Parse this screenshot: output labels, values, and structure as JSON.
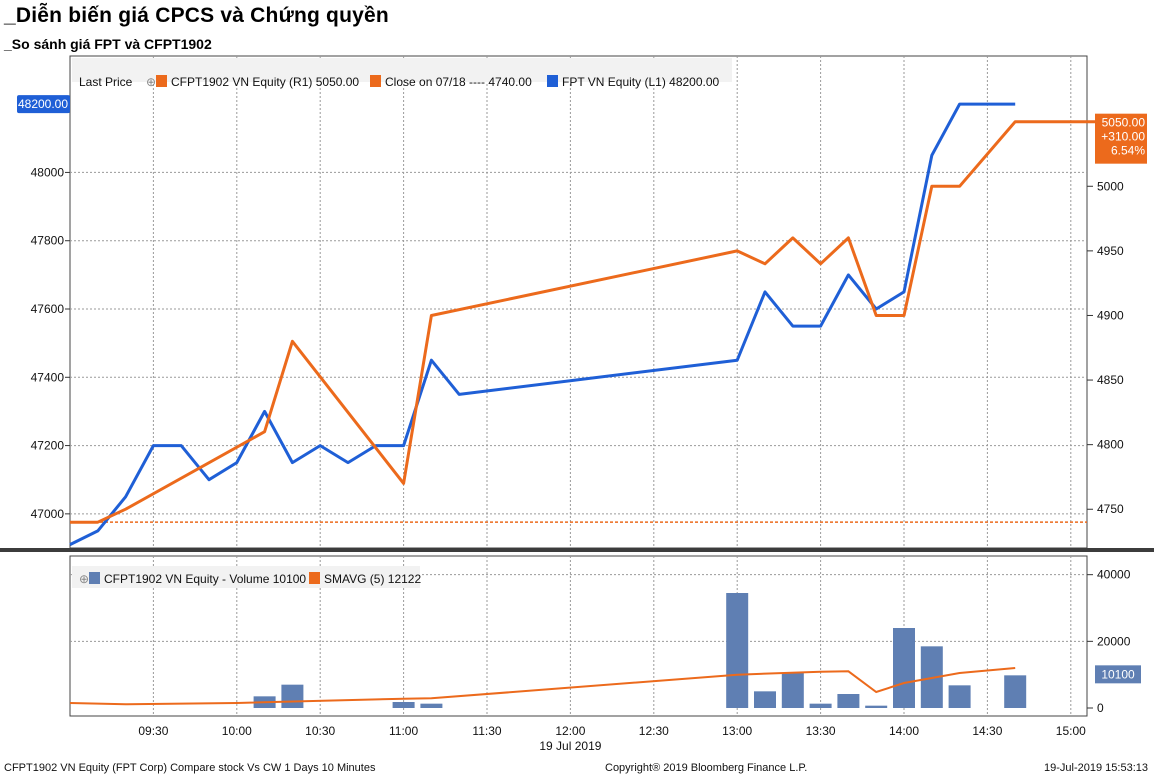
{
  "header": {
    "title": "_Diễn biến giá CPCS và Chứng quyền",
    "subtitle": "_So sánh giá FPT và CFPT1902"
  },
  "footer": {
    "left": "CFPT1902 VN Equity (FPT Corp) Compare stock Vs CW 1 Days 10 Minutes",
    "center": "Copyright® 2019 Bloomberg Finance L.P.",
    "right": "19-Jul-2019 15:53:13"
  },
  "colors": {
    "blue": "#1f5fd6",
    "orange": "#ec6a1c",
    "bar": "#5f7fb3",
    "grid": "#9a9a9a"
  },
  "chart_data": [
    {
      "type": "line",
      "legend": {
        "prefix": "Last Price",
        "items": [
          {
            "label": "CFPT1902 VN Equity  (R1) 5050.00",
            "color": "#ec6a1c"
          },
          {
            "label": "Close on 07/18 ---- 4740.00",
            "color": "#ec6a1c"
          },
          {
            "label": "FPT VN Equity  (L1) 48200.00",
            "color": "#1f5fd6"
          }
        ]
      },
      "x_ticks": [
        "09:30",
        "10:00",
        "10:30",
        "11:00",
        "11:30",
        "12:00",
        "12:30",
        "13:00",
        "13:30",
        "14:00",
        "14:30",
        "15:00"
      ],
      "x_date_label": "19 Jul 2019",
      "left_axis": {
        "ticks": [
          "47000",
          "47200",
          "47400",
          "47600",
          "47800",
          "48000"
        ],
        "ylim": [
          46900,
          48300
        ]
      },
      "right_axis": {
        "ticks": [
          "4750",
          "4800",
          "4850",
          "4900",
          "4950",
          "5000"
        ],
        "ylim": [
          4720,
          5090
        ]
      },
      "series": [
        {
          "name": "FPT VN Equity",
          "axis": "left",
          "color": "#1f5fd6",
          "points": [
            [
              "09:00",
              46910
            ],
            [
              "09:10",
              46950
            ],
            [
              "09:20",
              47050
            ],
            [
              "09:30",
              47200
            ],
            [
              "09:40",
              47200
            ],
            [
              "09:50",
              47100
            ],
            [
              "10:00",
              47150
            ],
            [
              "10:10",
              47300
            ],
            [
              "10:20",
              47150
            ],
            [
              "10:30",
              47200
            ],
            [
              "10:40",
              47150
            ],
            [
              "10:50",
              47200
            ],
            [
              "11:00",
              47200
            ],
            [
              "11:10",
              47450
            ],
            [
              "11:20",
              47350
            ],
            [
              "13:00",
              47450
            ],
            [
              "13:10",
              47650
            ],
            [
              "13:20",
              47550
            ],
            [
              "13:30",
              47550
            ],
            [
              "13:40",
              47700
            ],
            [
              "13:50",
              47600
            ],
            [
              "14:00",
              47650
            ],
            [
              "14:10",
              48050
            ],
            [
              "14:20",
              48200
            ],
            [
              "14:30",
              48200
            ],
            [
              "14:40",
              48200
            ]
          ]
        },
        {
          "name": "CFPT1902 VN Equity",
          "axis": "right",
          "color": "#ec6a1c",
          "points": [
            [
              "09:00",
              4740
            ],
            [
              "09:10",
              4740
            ],
            [
              "09:20",
              4750
            ],
            [
              "10:10",
              4810
            ],
            [
              "10:20",
              4880
            ],
            [
              "11:00",
              4770
            ],
            [
              "11:10",
              4900
            ],
            [
              "13:00",
              4950
            ],
            [
              "13:10",
              4940
            ],
            [
              "13:20",
              4960
            ],
            [
              "13:30",
              4940
            ],
            [
              "13:40",
              4960
            ],
            [
              "13:50",
              4900
            ],
            [
              "14:00",
              4900
            ],
            [
              "14:10",
              5000
            ],
            [
              "14:20",
              5000
            ],
            [
              "14:40",
              5050
            ],
            [
              "15:10",
              5050
            ]
          ]
        }
      ],
      "reference_line": {
        "value": 4740,
        "axis": "right"
      },
      "last_value_tags": {
        "left": "48200.00",
        "right": [
          "5050.00",
          "+310.00",
          "6.54%"
        ]
      }
    },
    {
      "type": "bar",
      "legend": {
        "items": [
          {
            "label": "CFPT1902 VN Equity - Volume 10100",
            "color": "#5f7fb3"
          },
          {
            "label": "SMAVG (5) 12122",
            "color": "#ec6a1c"
          }
        ]
      },
      "y_ticks": [
        "0",
        "20000",
        "40000"
      ],
      "ylim": [
        0,
        42000
      ],
      "bars": [
        [
          "10:10",
          3500
        ],
        [
          "10:20",
          7000
        ],
        [
          "11:00",
          1800
        ],
        [
          "11:10",
          1300
        ],
        [
          "13:00",
          34500
        ],
        [
          "13:10",
          5000
        ],
        [
          "13:20",
          10500
        ],
        [
          "13:30",
          1300
        ],
        [
          "13:40",
          4200
        ],
        [
          "13:50",
          700
        ],
        [
          "14:00",
          24000
        ],
        [
          "14:10",
          18500
        ],
        [
          "14:20",
          6800
        ],
        [
          "14:40",
          9800
        ]
      ],
      "sma_series": {
        "name": "SMAVG (5)",
        "points": [
          [
            "09:00",
            1500
          ],
          [
            "09:20",
            1100
          ],
          [
            "10:00",
            1500
          ],
          [
            "11:00",
            2800
          ],
          [
            "11:10",
            2900
          ],
          [
            "13:00",
            10000
          ],
          [
            "13:30",
            10900
          ],
          [
            "13:40",
            11000
          ],
          [
            "13:50",
            4800
          ],
          [
            "14:00",
            7500
          ],
          [
            "14:20",
            10500
          ],
          [
            "14:40",
            12000
          ]
        ]
      },
      "last_value_tag": "10100"
    }
  ]
}
